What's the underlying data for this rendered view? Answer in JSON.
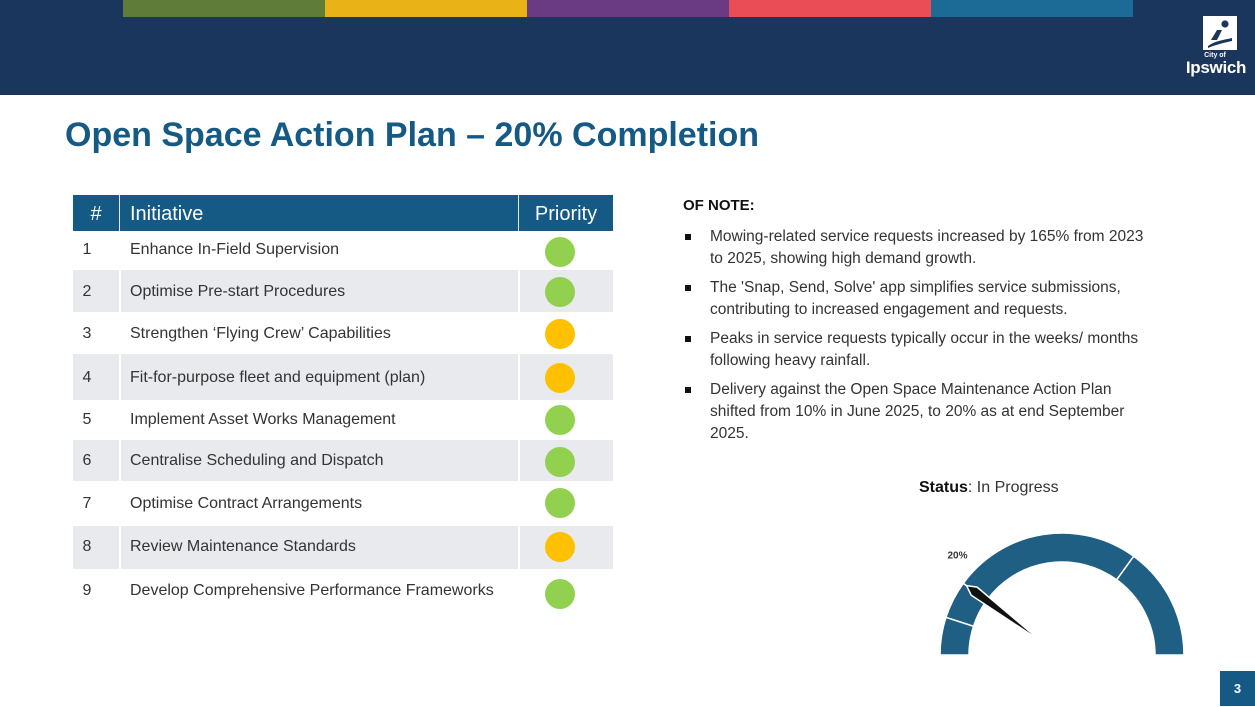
{
  "brand": {
    "logo_small_text": "City of",
    "logo_text": "Ipswich",
    "stripe_colors": [
      "#5f7d38",
      "#e9b318",
      "#6a3a83",
      "#ea4d55",
      "#1c6b97"
    ]
  },
  "title": "Open Space Action Plan – 20% Completion",
  "table": {
    "headers": {
      "num": "#",
      "initiative": "Initiative",
      "priority": "Priority"
    },
    "rows": [
      {
        "num": "1",
        "initiative": "Enhance In-Field Supervision",
        "priority_color": "#92d050"
      },
      {
        "num": "2",
        "initiative": "Optimise Pre-start Procedures",
        "priority_color": "#92d050"
      },
      {
        "num": "3",
        "initiative": "Strengthen ‘Flying Crew’ Capabilities",
        "priority_color": "#ffc000"
      },
      {
        "num": "4",
        "initiative": "Fit-for-purpose fleet and equipment (plan)",
        "priority_color": "#ffc000"
      },
      {
        "num": "5",
        "initiative": "Implement Asset Works Management",
        "priority_color": "#92d050"
      },
      {
        "num": "6",
        "initiative": "Centralise Scheduling and Dispatch",
        "priority_color": "#92d050"
      },
      {
        "num": "7",
        "initiative": "Optimise Contract Arrangements",
        "priority_color": "#92d050"
      },
      {
        "num": "8",
        "initiative": "Review Maintenance Standards",
        "priority_color": "#ffc000"
      },
      {
        "num": "9",
        "initiative": "Develop Comprehensive Performance Frameworks",
        "priority_color": "#92d050"
      }
    ]
  },
  "notes": {
    "heading": "OF NOTE:",
    "items": [
      "Mowing-related service requests increased by 165% from 2023 to 2025, showing high demand growth.",
      "The 'Snap, Send, Solve' app simplifies service submissions, contributing to increased engagement and requests.",
      "Peaks in service requests typically occur in the weeks/ months following heavy rainfall.",
      "Delivery against the Open Space Maintenance Action Plan shifted from 10% in June 2025, to 20% as at end September 2025."
    ]
  },
  "status": {
    "label": "Status",
    "value": ": In Progress"
  },
  "gauge": {
    "value_percent": 20,
    "label": "20%",
    "color": "#1f5f84",
    "needle_color": "#111111",
    "segment_boundaries_percent": [
      10,
      20,
      70
    ]
  },
  "page_number": "3"
}
